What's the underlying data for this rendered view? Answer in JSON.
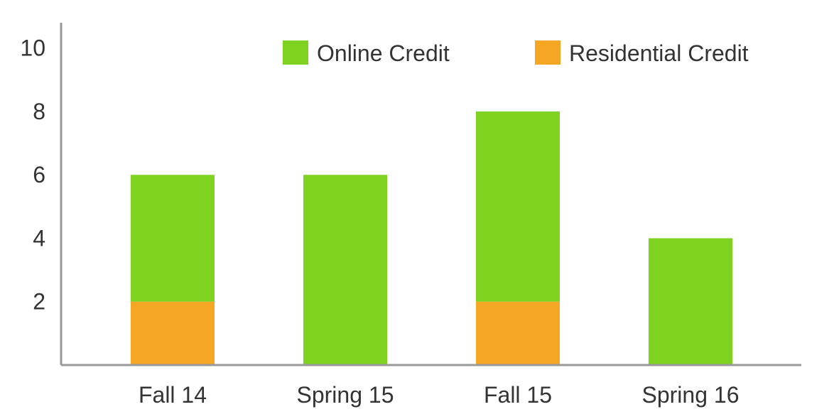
{
  "chart_data": {
    "type": "bar",
    "stacked": true,
    "categories": [
      "Fall 14",
      "Spring 15",
      "Fall 15",
      "Spring 16"
    ],
    "series": [
      {
        "name": "Residential Credit",
        "values": [
          2,
          0,
          2,
          0
        ],
        "color": "#F5A623"
      },
      {
        "name": "Online Credit",
        "values": [
          4,
          6,
          6,
          4
        ],
        "color": "#7ED321"
      }
    ],
    "legend_order": [
      "Online Credit",
      "Residential Credit"
    ],
    "legend_position": "top-right",
    "yticks": [
      2,
      4,
      6,
      8,
      10
    ],
    "ylim": [
      0,
      10.8
    ],
    "grid": false,
    "title": "",
    "xlabel": "",
    "ylabel": "",
    "axis_color": "#999999"
  }
}
